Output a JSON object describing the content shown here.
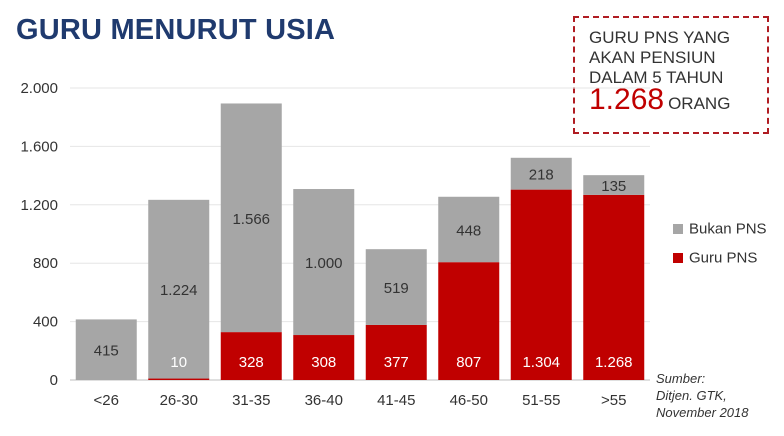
{
  "title": "GURU MENURUT USIA",
  "callout": {
    "line1": "GURU PNS YANG",
    "line2": "AKAN PENSIUN",
    "line3": "DALAM 5 TAHUN",
    "value": "1.268",
    "unit": "ORANG",
    "border_color": "#b01c22",
    "value_color": "#c00000"
  },
  "source": {
    "line1": "Sumber:",
    "line2": "Ditjen. GTK,",
    "line3": "November 2018"
  },
  "chart_data": {
    "type": "bar",
    "stacked": true,
    "categories": [
      "<26",
      "26-30",
      "31-35",
      "36-40",
      "41-45",
      "46-50",
      "51-55",
      ">55"
    ],
    "series": [
      {
        "name": "Guru PNS",
        "color": "#c00000",
        "values": [
          0,
          10,
          328,
          308,
          377,
          807,
          1304,
          1268
        ],
        "labels": [
          "",
          "10",
          "328",
          "308",
          "377",
          "807",
          "1.304",
          "1.268"
        ]
      },
      {
        "name": "Bukan PNS",
        "color": "#a6a6a6",
        "values": [
          415,
          1224,
          1566,
          1000,
          519,
          448,
          218,
          135
        ],
        "labels": [
          "415",
          "1.224",
          "1.566",
          "1.000",
          "519",
          "448",
          "218",
          "135"
        ]
      }
    ],
    "ylim": [
      0,
      2000
    ],
    "yticks": [
      0,
      400,
      800,
      1200,
      1600,
      2000
    ],
    "ytick_labels": [
      "0",
      "400",
      "800",
      "1.200",
      "1.600",
      "2.000"
    ],
    "grid": true,
    "legend_placement": "right"
  }
}
